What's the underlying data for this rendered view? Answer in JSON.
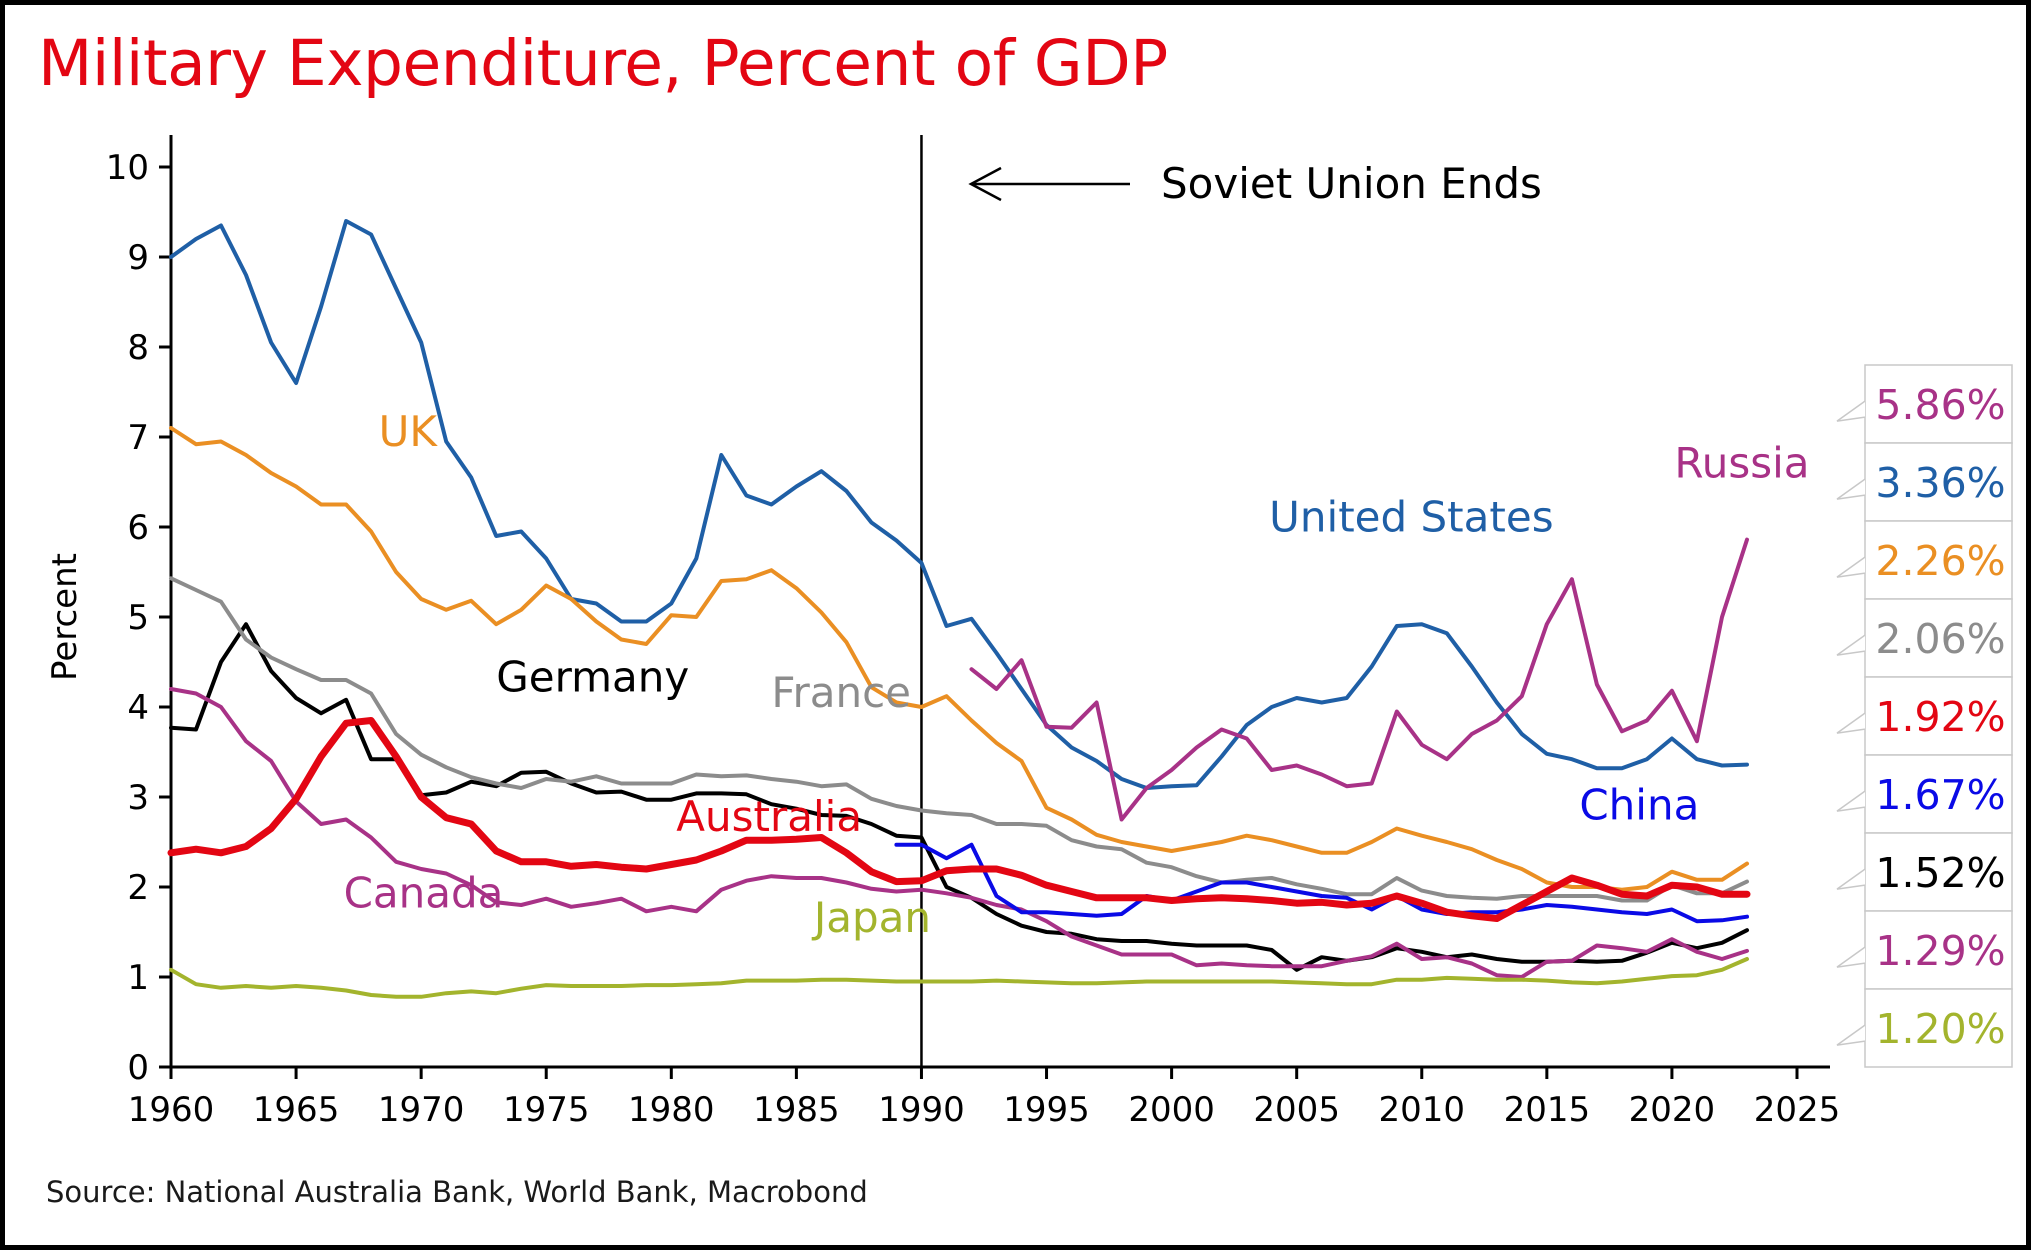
{
  "title": "Military Expenditure, Percent of GDP",
  "title_color": "#e30613",
  "source": "Source: National Australia Bank, World Bank, Macrobond",
  "chart_data": {
    "type": "line",
    "ylabel": "Percent",
    "xlabel": "",
    "xlim": [
      1960,
      2025
    ],
    "ylim": [
      0,
      10
    ],
    "x_ticks": [
      1960,
      1965,
      1970,
      1975,
      1980,
      1985,
      1990,
      1995,
      2000,
      2005,
      2010,
      2015,
      2020,
      2025
    ],
    "y_ticks": [
      0,
      1,
      2,
      3,
      4,
      5,
      6,
      7,
      8,
      9,
      10
    ],
    "grid": false,
    "legend": "inline labels",
    "annotation": {
      "text": "Soviet Union Ends",
      "x": 1990
    },
    "series": [
      {
        "name": "United States",
        "color": "#1f5fa6",
        "label": {
          "text": "United States",
          "x": 2003.9,
          "y": 5.95
        },
        "x": [
          1960,
          1961,
          1962,
          1963,
          1964,
          1965,
          1966,
          1967,
          1968,
          1969,
          1970,
          1971,
          1972,
          1973,
          1974,
          1975,
          1976,
          1977,
          1978,
          1979,
          1980,
          1981,
          1982,
          1983,
          1984,
          1985,
          1986,
          1987,
          1988,
          1989,
          1990,
          1991,
          1992,
          1993,
          1994,
          1995,
          1996,
          1997,
          1998,
          1999,
          2000,
          2001,
          2002,
          2003,
          2004,
          2005,
          2006,
          2007,
          2008,
          2009,
          2010,
          2011,
          2012,
          2013,
          2014,
          2015,
          2016,
          2017,
          2018,
          2019,
          2020,
          2021,
          2022,
          2023
        ],
        "values": [
          9.0,
          9.2,
          9.35,
          8.8,
          8.05,
          7.6,
          8.45,
          9.4,
          9.25,
          8.65,
          8.05,
          6.95,
          6.55,
          5.9,
          5.95,
          5.65,
          5.2,
          5.15,
          4.95,
          4.95,
          5.15,
          5.65,
          6.8,
          6.35,
          6.25,
          6.45,
          6.62,
          6.4,
          6.05,
          5.85,
          5.6,
          4.9,
          4.98,
          4.6,
          4.2,
          3.8,
          3.55,
          3.4,
          3.2,
          3.1,
          3.12,
          3.13,
          3.45,
          3.8,
          4.0,
          4.1,
          4.05,
          4.1,
          4.45,
          4.9,
          4.92,
          4.82,
          4.45,
          4.05,
          3.7,
          3.48,
          3.42,
          3.32,
          3.32,
          3.42,
          3.65,
          3.42,
          3.35,
          3.36
        ]
      },
      {
        "name": "UK",
        "color": "#ea8f23",
        "label": {
          "text": "UK",
          "x": 1968.3,
          "y": 6.9
        },
        "x": [
          1960,
          1961,
          1962,
          1963,
          1964,
          1965,
          1966,
          1967,
          1968,
          1969,
          1970,
          1971,
          1972,
          1973,
          1974,
          1975,
          1976,
          1977,
          1978,
          1979,
          1980,
          1981,
          1982,
          1983,
          1984,
          1985,
          1986,
          1987,
          1988,
          1989,
          1990,
          1991,
          1992,
          1993,
          1994,
          1995,
          1996,
          1997,
          1998,
          1999,
          2000,
          2001,
          2002,
          2003,
          2004,
          2005,
          2006,
          2007,
          2008,
          2009,
          2010,
          2011,
          2012,
          2013,
          2014,
          2015,
          2016,
          2017,
          2018,
          2019,
          2020,
          2021,
          2022,
          2023
        ],
        "values": [
          7.1,
          6.92,
          6.95,
          6.8,
          6.6,
          6.45,
          6.25,
          6.25,
          5.95,
          5.5,
          5.2,
          5.08,
          5.18,
          4.92,
          5.08,
          5.35,
          5.2,
          4.95,
          4.75,
          4.7,
          5.02,
          5.0,
          5.4,
          5.42,
          5.52,
          5.32,
          5.05,
          4.72,
          4.22,
          4.05,
          4.0,
          4.12,
          3.85,
          3.6,
          3.4,
          2.88,
          2.75,
          2.58,
          2.5,
          2.45,
          2.4,
          2.45,
          2.5,
          2.57,
          2.52,
          2.45,
          2.38,
          2.38,
          2.5,
          2.65,
          2.57,
          2.5,
          2.42,
          2.3,
          2.2,
          2.05,
          2.0,
          2.0,
          1.97,
          2.0,
          2.17,
          2.08,
          2.08,
          2.26
        ]
      },
      {
        "name": "Germany",
        "color": "#000000",
        "label": {
          "text": "Germany",
          "x": 1973.0,
          "y": 4.17
        },
        "x": [
          1960,
          1961,
          1962,
          1963,
          1964,
          1965,
          1966,
          1967,
          1968,
          1969,
          1970,
          1971,
          1972,
          1973,
          1974,
          1975,
          1976,
          1977,
          1978,
          1979,
          1980,
          1981,
          1982,
          1983,
          1984,
          1985,
          1986,
          1987,
          1988,
          1989,
          1990,
          1991,
          1992,
          1993,
          1994,
          1995,
          1996,
          1997,
          1998,
          1999,
          2000,
          2001,
          2002,
          2003,
          2004,
          2005,
          2006,
          2007,
          2008,
          2009,
          2010,
          2011,
          2012,
          2013,
          2014,
          2015,
          2016,
          2017,
          2018,
          2019,
          2020,
          2021,
          2022,
          2023
        ],
        "values": [
          3.77,
          3.75,
          4.5,
          4.92,
          4.4,
          4.1,
          3.93,
          4.08,
          3.42,
          3.42,
          3.02,
          3.05,
          3.17,
          3.12,
          3.27,
          3.28,
          3.15,
          3.05,
          3.06,
          2.97,
          2.97,
          3.04,
          3.04,
          3.03,
          2.92,
          2.87,
          2.8,
          2.79,
          2.7,
          2.57,
          2.55,
          2.0,
          1.88,
          1.7,
          1.57,
          1.5,
          1.48,
          1.42,
          1.4,
          1.4,
          1.37,
          1.35,
          1.35,
          1.35,
          1.3,
          1.08,
          1.22,
          1.18,
          1.22,
          1.32,
          1.28,
          1.22,
          1.25,
          1.2,
          1.17,
          1.17,
          1.18,
          1.17,
          1.18,
          1.27,
          1.38,
          1.32,
          1.38,
          1.52
        ]
      },
      {
        "name": "France",
        "color": "#8c8c8c",
        "label": {
          "text": "France",
          "x": 1984.0,
          "y": 4.0
        },
        "x": [
          1960,
          1961,
          1962,
          1963,
          1964,
          1965,
          1966,
          1967,
          1968,
          1969,
          1970,
          1971,
          1972,
          1973,
          1974,
          1975,
          1976,
          1977,
          1978,
          1979,
          1980,
          1981,
          1982,
          1983,
          1984,
          1985,
          1986,
          1987,
          1988,
          1989,
          1990,
          1991,
          1992,
          1993,
          1994,
          1995,
          1996,
          1997,
          1998,
          1999,
          2000,
          2001,
          2002,
          2003,
          2004,
          2005,
          2006,
          2007,
          2008,
          2009,
          2010,
          2011,
          2012,
          2013,
          2014,
          2015,
          2016,
          2017,
          2018,
          2019,
          2020,
          2021,
          2022,
          2023
        ],
        "values": [
          5.43,
          5.3,
          5.17,
          4.75,
          4.55,
          4.42,
          4.3,
          4.3,
          4.15,
          3.7,
          3.47,
          3.33,
          3.22,
          3.15,
          3.1,
          3.2,
          3.17,
          3.23,
          3.15,
          3.15,
          3.15,
          3.25,
          3.23,
          3.24,
          3.2,
          3.17,
          3.12,
          3.14,
          2.98,
          2.9,
          2.85,
          2.82,
          2.8,
          2.7,
          2.7,
          2.68,
          2.52,
          2.45,
          2.42,
          2.27,
          2.22,
          2.12,
          2.05,
          2.08,
          2.1,
          2.03,
          1.98,
          1.92,
          1.92,
          2.1,
          1.96,
          1.9,
          1.88,
          1.87,
          1.9,
          1.9,
          1.9,
          1.9,
          1.85,
          1.85,
          2.02,
          1.93,
          1.93,
          2.06
        ]
      },
      {
        "name": "Australia",
        "color": "#e30613",
        "thick": true,
        "label": {
          "text": "Australia",
          "x": 1980.2,
          "y": 2.62
        },
        "x": [
          1960,
          1961,
          1962,
          1963,
          1964,
          1965,
          1966,
          1967,
          1968,
          1969,
          1970,
          1971,
          1972,
          1973,
          1974,
          1975,
          1976,
          1977,
          1978,
          1979,
          1980,
          1981,
          1982,
          1983,
          1984,
          1985,
          1986,
          1987,
          1988,
          1989,
          1990,
          1991,
          1992,
          1993,
          1994,
          1995,
          1996,
          1997,
          1998,
          1999,
          2000,
          2001,
          2002,
          2003,
          2004,
          2005,
          2006,
          2007,
          2008,
          2009,
          2010,
          2011,
          2012,
          2013,
          2014,
          2015,
          2016,
          2017,
          2018,
          2019,
          2020,
          2021,
          2022,
          2023
        ],
        "values": [
          2.38,
          2.42,
          2.38,
          2.45,
          2.65,
          2.98,
          3.45,
          3.82,
          3.85,
          3.45,
          3.0,
          2.77,
          2.7,
          2.4,
          2.28,
          2.28,
          2.23,
          2.25,
          2.22,
          2.2,
          2.25,
          2.3,
          2.4,
          2.52,
          2.52,
          2.53,
          2.55,
          2.38,
          2.17,
          2.06,
          2.07,
          2.18,
          2.2,
          2.2,
          2.13,
          2.02,
          1.95,
          1.88,
          1.88,
          1.88,
          1.85,
          1.87,
          1.88,
          1.87,
          1.85,
          1.82,
          1.83,
          1.8,
          1.82,
          1.9,
          1.82,
          1.72,
          1.68,
          1.65,
          1.8,
          1.95,
          2.1,
          2.02,
          1.92,
          1.9,
          2.02,
          2.0,
          1.92,
          1.92
        ]
      },
      {
        "name": "Canada",
        "color": "#a83287",
        "label": {
          "text": "Canada",
          "x": 1966.9,
          "y": 1.77
        },
        "x": [
          1960,
          1961,
          1962,
          1963,
          1964,
          1965,
          1966,
          1967,
          1968,
          1969,
          1970,
          1971,
          1972,
          1973,
          1974,
          1975,
          1976,
          1977,
          1978,
          1979,
          1980,
          1981,
          1982,
          1983,
          1984,
          1985,
          1986,
          1987,
          1988,
          1989,
          1990,
          1991,
          1992,
          1993,
          1994,
          1995,
          1996,
          1997,
          1998,
          1999,
          2000,
          2001,
          2002,
          2003,
          2004,
          2005,
          2006,
          2007,
          2008,
          2009,
          2010,
          2011,
          2012,
          2013,
          2014,
          2015,
          2016,
          2017,
          2018,
          2019,
          2020,
          2021,
          2022,
          2023
        ],
        "values": [
          4.2,
          4.15,
          4.0,
          3.62,
          3.4,
          2.95,
          2.7,
          2.75,
          2.55,
          2.28,
          2.2,
          2.15,
          2.02,
          1.83,
          1.8,
          1.87,
          1.78,
          1.82,
          1.87,
          1.73,
          1.78,
          1.73,
          1.97,
          2.07,
          2.12,
          2.1,
          2.1,
          2.05,
          1.98,
          1.95,
          1.97,
          1.93,
          1.88,
          1.8,
          1.75,
          1.62,
          1.45,
          1.35,
          1.25,
          1.25,
          1.25,
          1.13,
          1.15,
          1.13,
          1.12,
          1.12,
          1.12,
          1.18,
          1.23,
          1.37,
          1.2,
          1.22,
          1.15,
          1.02,
          1.0,
          1.17,
          1.18,
          1.35,
          1.32,
          1.28,
          1.42,
          1.28,
          1.2,
          1.29
        ]
      },
      {
        "name": "Japan",
        "color": "#a3b42d",
        "label": {
          "text": "Japan",
          "x": 1985.7,
          "y": 1.5
        },
        "x": [
          1960,
          1961,
          1962,
          1963,
          1964,
          1965,
          1966,
          1967,
          1968,
          1969,
          1970,
          1971,
          1972,
          1973,
          1974,
          1975,
          1976,
          1977,
          1978,
          1979,
          1980,
          1981,
          1982,
          1983,
          1984,
          1985,
          1986,
          1987,
          1988,
          1989,
          1990,
          1991,
          1992,
          1993,
          1994,
          1995,
          1996,
          1997,
          1998,
          1999,
          2000,
          2001,
          2002,
          2003,
          2004,
          2005,
          2006,
          2007,
          2008,
          2009,
          2010,
          2011,
          2012,
          2013,
          2014,
          2015,
          2016,
          2017,
          2018,
          2019,
          2020,
          2021,
          2022,
          2023
        ],
        "values": [
          1.08,
          0.92,
          0.88,
          0.9,
          0.88,
          0.9,
          0.88,
          0.85,
          0.8,
          0.78,
          0.78,
          0.82,
          0.84,
          0.82,
          0.87,
          0.91,
          0.9,
          0.9,
          0.9,
          0.91,
          0.91,
          0.92,
          0.93,
          0.96,
          0.96,
          0.96,
          0.97,
          0.97,
          0.96,
          0.95,
          0.95,
          0.95,
          0.95,
          0.96,
          0.95,
          0.94,
          0.93,
          0.93,
          0.94,
          0.95,
          0.95,
          0.95,
          0.95,
          0.95,
          0.95,
          0.94,
          0.93,
          0.92,
          0.92,
          0.97,
          0.97,
          0.99,
          0.98,
          0.97,
          0.97,
          0.96,
          0.94,
          0.93,
          0.95,
          0.98,
          1.01,
          1.02,
          1.08,
          1.2
        ]
      },
      {
        "name": "China",
        "color": "#0a0ae6",
        "label": {
          "text": "China",
          "x": 2016.3,
          "y": 2.75
        },
        "x": [
          1989,
          1990,
          1991,
          1992,
          1993,
          1994,
          1995,
          1996,
          1997,
          1998,
          1999,
          2000,
          2001,
          2002,
          2003,
          2004,
          2005,
          2006,
          2007,
          2008,
          2009,
          2010,
          2011,
          2012,
          2013,
          2014,
          2015,
          2016,
          2017,
          2018,
          2019,
          2020,
          2021,
          2022,
          2023
        ],
        "values": [
          2.47,
          2.47,
          2.32,
          2.47,
          1.9,
          1.72,
          1.72,
          1.7,
          1.68,
          1.7,
          1.9,
          1.85,
          1.95,
          2.05,
          2.05,
          2.0,
          1.95,
          1.9,
          1.88,
          1.75,
          1.9,
          1.75,
          1.7,
          1.72,
          1.72,
          1.75,
          1.8,
          1.78,
          1.75,
          1.72,
          1.7,
          1.75,
          1.62,
          1.63,
          1.67
        ]
      },
      {
        "name": "Russia",
        "color": "#a83287",
        "label": {
          "text": "Russia",
          "x": 2020.1,
          "y": 6.55
        },
        "x": [
          1992,
          1993,
          1994,
          1995,
          1996,
          1997,
          1998,
          1999,
          2000,
          2001,
          2002,
          2003,
          2004,
          2005,
          2006,
          2007,
          2008,
          2009,
          2010,
          2011,
          2012,
          2013,
          2014,
          2015,
          2016,
          2017,
          2018,
          2019,
          2020,
          2021,
          2022,
          2023
        ],
        "values": [
          4.42,
          4.2,
          4.52,
          3.78,
          3.77,
          4.05,
          2.75,
          3.1,
          3.3,
          3.55,
          3.75,
          3.65,
          3.3,
          3.35,
          3.25,
          3.12,
          3.15,
          3.95,
          3.58,
          3.42,
          3.7,
          3.85,
          4.12,
          4.92,
          5.42,
          4.25,
          3.73,
          3.85,
          4.18,
          3.62,
          5.0,
          5.86
        ]
      }
    ],
    "value_tags": [
      {
        "text": "5.86%",
        "color": "#a83287"
      },
      {
        "text": "3.36%",
        "color": "#1f5fa6"
      },
      {
        "text": "2.26%",
        "color": "#ea8f23"
      },
      {
        "text": "2.06%",
        "color": "#8c8c8c"
      },
      {
        "text": "1.92%",
        "color": "#e30613"
      },
      {
        "text": "1.67%",
        "color": "#0a0ae6"
      },
      {
        "text": "1.52%",
        "color": "#000000"
      },
      {
        "text": "1.29%",
        "color": "#a83287"
      },
      {
        "text": "1.20%",
        "color": "#a3b42d"
      }
    ]
  }
}
